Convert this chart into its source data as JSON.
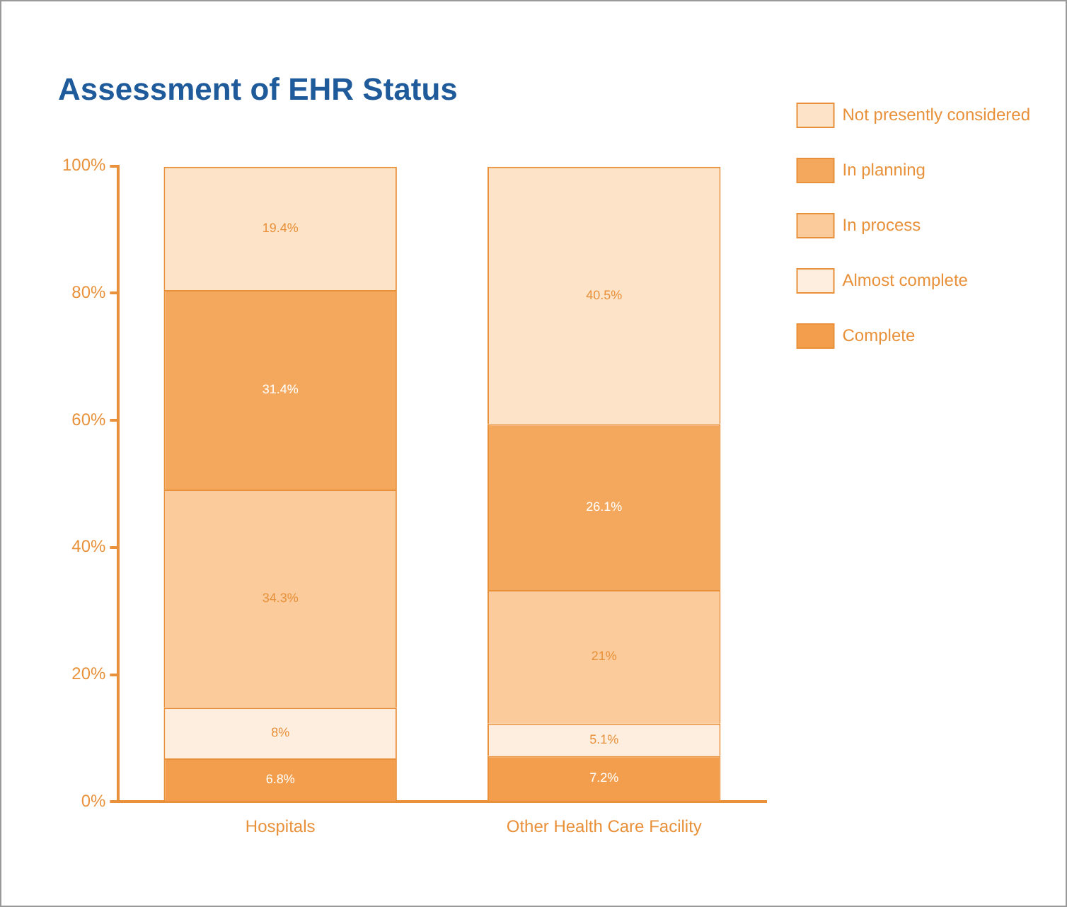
{
  "chart_data": {
    "type": "bar",
    "stacked": true,
    "title": "Assessment of EHR Status",
    "categories": [
      "Hospitals",
      "Other Health Care Facility"
    ],
    "series": [
      {
        "name": "Complete",
        "color": "#f29e4c",
        "values": [
          6.8,
          7.2
        ],
        "value_labels": [
          "6.8%",
          "7.2%"
        ]
      },
      {
        "name": "Almost complete",
        "color": "#fdeee0",
        "values": [
          8,
          5.1
        ],
        "value_labels": [
          "8%",
          "5.1%"
        ]
      },
      {
        "name": "In process",
        "color": "#fbcb9c",
        "values": [
          34.3,
          21
        ],
        "value_labels": [
          "34.3%",
          "21%"
        ]
      },
      {
        "name": "In planning",
        "color": "#f4a85e",
        "values": [
          31.4,
          26.1
        ],
        "value_labels": [
          "31.4%",
          "26.1%"
        ]
      },
      {
        "name": "Not presently considered",
        "color": "#fde3c8",
        "values": [
          19.4,
          40.5
        ],
        "value_labels": [
          "19.4%",
          "40.5%"
        ]
      }
    ],
    "ylim": [
      0,
      100
    ],
    "yticks": [
      {
        "value": 0,
        "label": "0%"
      },
      {
        "value": 20,
        "label": "20%"
      },
      {
        "value": 40,
        "label": "40%"
      },
      {
        "value": 60,
        "label": "60%"
      },
      {
        "value": 80,
        "label": "80%"
      },
      {
        "value": 100,
        "label": "100%"
      }
    ],
    "grid": false,
    "legend": "top right"
  }
}
